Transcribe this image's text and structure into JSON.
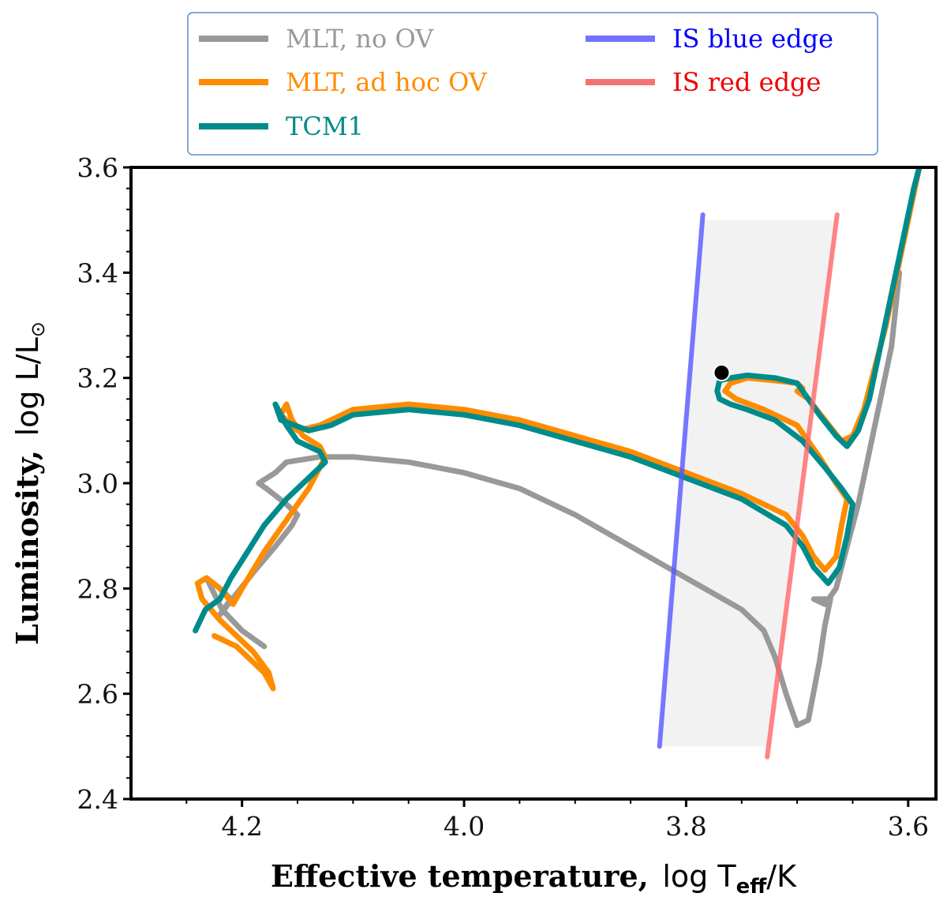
{
  "chart_data": {
    "type": "line",
    "xlabel_text": "Effective temperature,",
    "xlabel_math": "log T",
    "xlabel_sub": "eff",
    "xlabel_unit": "/K",
    "ylabel_text": "Luminosity,",
    "ylabel_math": "log L/L",
    "ylabel_sub": "⊙",
    "x_axis": {
      "range": [
        4.3,
        3.575
      ],
      "reversed": true,
      "ticks": [
        4.2,
        4.0,
        3.8,
        3.6
      ],
      "tick_labels": [
        "4.2",
        "4.0",
        "3.8",
        "3.6"
      ]
    },
    "y_axis": {
      "range": [
        2.4,
        3.6
      ],
      "ticks": [
        2.4,
        2.6,
        2.8,
        3.0,
        3.2,
        3.4,
        3.6
      ],
      "tick_labels": [
        "2.4",
        "2.6",
        "2.8",
        "3.0",
        "3.2",
        "3.4",
        "3.6"
      ]
    },
    "grid": false,
    "legend_position": "top, above plot",
    "series": [
      {
        "name": "MLT, no OV",
        "color": "#999999",
        "points": [
          [
            4.18,
            2.69
          ],
          [
            4.2,
            2.72
          ],
          [
            4.218,
            2.76
          ],
          [
            4.225,
            2.79
          ],
          [
            4.232,
            2.82
          ],
          [
            4.22,
            2.8
          ],
          [
            4.21,
            2.78
          ],
          [
            4.22,
            2.75
          ],
          [
            4.19,
            2.83
          ],
          [
            4.17,
            2.88
          ],
          [
            4.155,
            2.92
          ],
          [
            4.15,
            2.94
          ],
          [
            4.16,
            2.96
          ],
          [
            4.178,
            2.99
          ],
          [
            4.185,
            3.0
          ],
          [
            4.17,
            3.02
          ],
          [
            4.16,
            3.04
          ],
          [
            4.13,
            3.05
          ],
          [
            4.1,
            3.05
          ],
          [
            4.05,
            3.04
          ],
          [
            4.0,
            3.02
          ],
          [
            3.95,
            2.99
          ],
          [
            3.9,
            2.94
          ],
          [
            3.85,
            2.88
          ],
          [
            3.8,
            2.82
          ],
          [
            3.75,
            2.76
          ],
          [
            3.73,
            2.72
          ],
          [
            3.72,
            2.67
          ],
          [
            3.71,
            2.6
          ],
          [
            3.7,
            2.54
          ],
          [
            3.69,
            2.55
          ],
          [
            3.68,
            2.66
          ],
          [
            3.675,
            2.73
          ],
          [
            3.67,
            2.78
          ],
          [
            3.685,
            2.78
          ],
          [
            3.675,
            2.77
          ],
          [
            3.665,
            2.8
          ],
          [
            3.655,
            2.88
          ],
          [
            3.645,
            2.96
          ],
          [
            3.635,
            3.06
          ],
          [
            3.625,
            3.16
          ],
          [
            3.615,
            3.26
          ],
          [
            3.608,
            3.4
          ]
        ]
      },
      {
        "name": "MLT, ad hoc OV",
        "color": "#ff8c00",
        "points": [
          [
            4.225,
            2.71
          ],
          [
            4.205,
            2.69
          ],
          [
            4.195,
            2.67
          ],
          [
            4.18,
            2.64
          ],
          [
            4.172,
            2.61
          ],
          [
            4.176,
            2.64
          ],
          [
            4.19,
            2.68
          ],
          [
            4.205,
            2.71
          ],
          [
            4.22,
            2.74
          ],
          [
            4.236,
            2.78
          ],
          [
            4.24,
            2.81
          ],
          [
            4.232,
            2.82
          ],
          [
            4.22,
            2.8
          ],
          [
            4.208,
            2.77
          ],
          [
            4.2,
            2.8
          ],
          [
            4.18,
            2.87
          ],
          [
            4.16,
            2.93
          ],
          [
            4.14,
            2.99
          ],
          [
            4.125,
            3.05
          ],
          [
            4.13,
            3.07
          ],
          [
            4.145,
            3.09
          ],
          [
            4.155,
            3.12
          ],
          [
            4.16,
            3.15
          ],
          [
            4.165,
            3.13
          ],
          [
            4.15,
            3.1
          ],
          [
            4.13,
            3.11
          ],
          [
            4.1,
            3.14
          ],
          [
            4.05,
            3.15
          ],
          [
            4.0,
            3.14
          ],
          [
            3.95,
            3.12
          ],
          [
            3.9,
            3.09
          ],
          [
            3.85,
            3.06
          ],
          [
            3.8,
            3.02
          ],
          [
            3.75,
            2.98
          ],
          [
            3.71,
            2.94
          ],
          [
            3.695,
            2.9
          ],
          [
            3.685,
            2.86
          ],
          [
            3.675,
            2.835
          ],
          [
            3.665,
            2.86
          ],
          [
            3.66,
            2.92
          ],
          [
            3.655,
            2.97
          ],
          [
            3.665,
            3.0
          ],
          [
            3.68,
            3.05
          ],
          [
            3.7,
            3.11
          ],
          [
            3.73,
            3.14
          ],
          [
            3.755,
            3.16
          ],
          [
            3.765,
            3.175
          ],
          [
            3.76,
            3.19
          ],
          [
            3.745,
            3.2
          ],
          [
            3.72,
            3.195
          ],
          [
            3.7,
            3.19
          ],
          [
            3.695,
            3.18
          ],
          [
            3.7,
            3.175
          ],
          [
            3.69,
            3.16
          ],
          [
            3.675,
            3.12
          ],
          [
            3.66,
            3.08
          ],
          [
            3.65,
            3.09
          ],
          [
            3.64,
            3.14
          ],
          [
            3.63,
            3.22
          ],
          [
            3.62,
            3.3
          ],
          [
            3.61,
            3.4
          ],
          [
            3.6,
            3.5
          ],
          [
            3.59,
            3.6
          ]
        ]
      },
      {
        "name": "TCM1",
        "color": "#008b8b",
        "points": [
          [
            4.242,
            2.72
          ],
          [
            4.233,
            2.76
          ],
          [
            4.22,
            2.78
          ],
          [
            4.21,
            2.82
          ],
          [
            4.195,
            2.87
          ],
          [
            4.18,
            2.92
          ],
          [
            4.16,
            2.97
          ],
          [
            4.14,
            3.01
          ],
          [
            4.125,
            3.04
          ],
          [
            4.13,
            3.06
          ],
          [
            4.15,
            3.08
          ],
          [
            4.16,
            3.11
          ],
          [
            4.17,
            3.15
          ],
          [
            4.165,
            3.12
          ],
          [
            4.14,
            3.1
          ],
          [
            4.12,
            3.11
          ],
          [
            4.1,
            3.13
          ],
          [
            4.05,
            3.14
          ],
          [
            4.0,
            3.13
          ],
          [
            3.95,
            3.11
          ],
          [
            3.9,
            3.08
          ],
          [
            3.85,
            3.05
          ],
          [
            3.8,
            3.01
          ],
          [
            3.75,
            2.97
          ],
          [
            3.71,
            2.92
          ],
          [
            3.695,
            2.88
          ],
          [
            3.685,
            2.84
          ],
          [
            3.672,
            2.81
          ],
          [
            3.662,
            2.84
          ],
          [
            3.655,
            2.9
          ],
          [
            3.65,
            2.96
          ],
          [
            3.66,
            2.99
          ],
          [
            3.675,
            3.03
          ],
          [
            3.695,
            3.08
          ],
          [
            3.72,
            3.12
          ],
          [
            3.745,
            3.14
          ],
          [
            3.76,
            3.15
          ],
          [
            3.77,
            3.16
          ],
          [
            3.772,
            3.175
          ],
          [
            3.77,
            3.195
          ],
          [
            3.76,
            3.2
          ],
          [
            3.745,
            3.205
          ],
          [
            3.72,
            3.2
          ],
          [
            3.7,
            3.19
          ],
          [
            3.69,
            3.16
          ],
          [
            3.68,
            3.13
          ],
          [
            3.665,
            3.09
          ],
          [
            3.655,
            3.07
          ],
          [
            3.645,
            3.1
          ],
          [
            3.635,
            3.16
          ],
          [
            3.625,
            3.26
          ],
          [
            3.615,
            3.36
          ],
          [
            3.605,
            3.46
          ],
          [
            3.595,
            3.56
          ],
          [
            3.59,
            3.6
          ]
        ]
      },
      {
        "name": "IS blue edge",
        "color": "#5555ff",
        "points": [
          [
            3.824,
            2.5
          ],
          [
            3.785,
            3.51
          ]
        ]
      },
      {
        "name": "IS red edge",
        "color": "#ff6666",
        "points": [
          [
            3.727,
            2.48
          ],
          [
            3.664,
            3.51
          ]
        ]
      }
    ],
    "instability_strip": {
      "fill_color": "#f2f2f2",
      "corners": [
        [
          3.824,
          2.5
        ],
        [
          3.727,
          2.5
        ],
        [
          3.664,
          3.5
        ],
        [
          3.785,
          3.5
        ]
      ]
    },
    "marker": {
      "x": 3.768,
      "y": 3.21,
      "color": "#000000"
    },
    "legend": [
      {
        "label": "MLT, no OV",
        "color": "#999999"
      },
      {
        "label": "IS blue edge",
        "color": "#0000ff"
      },
      {
        "label": "MLT, ad hoc OV",
        "color": "#ff8c00"
      },
      {
        "label": "IS red edge",
        "color": "#ee0000"
      },
      {
        "label": "TCM1",
        "color": "#008b8b"
      }
    ]
  }
}
